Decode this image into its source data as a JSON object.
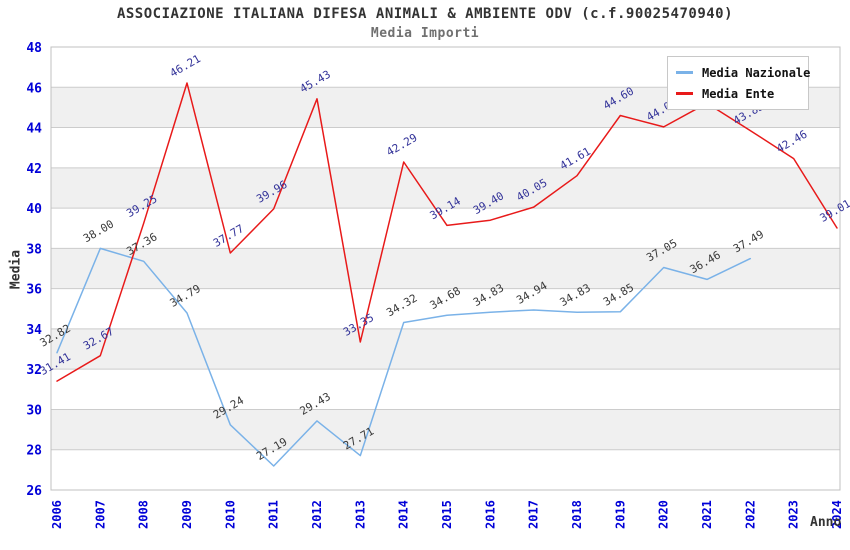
{
  "header": {
    "title": "ASSOCIAZIONE ITALIANA DIFESA ANIMALI & AMBIENTE ODV (c.f.90025470940)",
    "subtitle": "Media Importi"
  },
  "axes": {
    "y_title": "Media",
    "x_title": "Anno"
  },
  "legend": {
    "position": "top-right",
    "items": [
      {
        "label": "Media Nazionale",
        "color": "#7ab2e8"
      },
      {
        "label": "Media Ente",
        "color": "#e81a1a"
      }
    ]
  },
  "colors": {
    "tick_label": "#0000d8",
    "grid_line": "#cccccc",
    "plot_border": "#c0c0c0",
    "band_fill": "#f0f0f0",
    "blue_series_line": "#7ab2e8",
    "red_series_line": "#e81a1a",
    "blue_series_label": "#3a3a3a",
    "red_series_label": "#333399"
  },
  "chart_data": {
    "type": "line",
    "title": "ASSOCIAZIONE ITALIANA DIFESA ANIMALI & AMBIENTE ODV (c.f.90025470940)",
    "subtitle": "Media Importi",
    "xlabel": "Anno",
    "ylabel": "Media",
    "ylim": [
      26,
      48
    ],
    "ytick_step": 2,
    "grid": true,
    "banded_background": true,
    "legend_position": "top-right",
    "categories": [
      "2006",
      "2007",
      "2008",
      "2009",
      "2010",
      "2011",
      "2012",
      "2013",
      "2014",
      "2015",
      "2016",
      "2017",
      "2018",
      "2019",
      "2020",
      "2021",
      "2022",
      "2023",
      "2024"
    ],
    "series": [
      {
        "name": "Media Nazionale",
        "color": "#7ab2e8",
        "label_color": "#3a3a3a",
        "values": [
          32.82,
          38.0,
          37.36,
          34.79,
          29.24,
          27.19,
          29.43,
          27.71,
          34.32,
          34.68,
          34.83,
          34.94,
          34.83,
          34.85,
          37.05,
          36.46,
          37.49,
          null,
          null
        ]
      },
      {
        "name": "Media Ente",
        "color": "#e81a1a",
        "label_color": "#333399",
        "values": [
          31.41,
          32.67,
          39.25,
          46.21,
          37.77,
          39.96,
          45.43,
          33.35,
          42.29,
          39.14,
          39.4,
          40.05,
          41.61,
          44.6,
          44.03,
          45.21,
          43.85,
          42.46,
          39.01
        ]
      }
    ]
  }
}
